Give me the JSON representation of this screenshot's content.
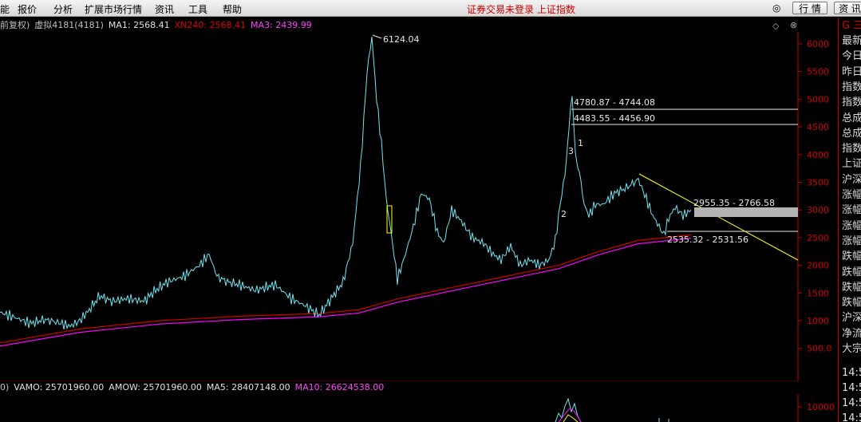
{
  "menu": [
    "能",
    "报价",
    "分析",
    "扩展市场行情",
    "资讯",
    "工具",
    "帮助"
  ],
  "status_title": "证券交易未登录 上证指数",
  "top_buttons": {
    "quotes": "行 情",
    "info": "资 讯"
  },
  "chart_header": {
    "mode": "前复权)",
    "symbol": "虚拟4181(4181)",
    "ma1": "MA1: 2568.41",
    "xn240": "XN240: 2568.41",
    "ma3": "MA3: 2439.99"
  },
  "y_axis": {
    "ticks": [
      "6000",
      "5500",
      "5000",
      "4500",
      "4000",
      "3500",
      "3000",
      "2500",
      "2000",
      "1500",
      "1000",
      "500.0"
    ]
  },
  "annotations": {
    "peak": "6124.04",
    "range1": "4780.87 - 4744.08",
    "range2": "4483.55 - 4456.90",
    "range3": "2955.35 - 2766.58",
    "range4": "2535.32 - 2531.56",
    "wave1": "1",
    "wave2": "2",
    "wave3": "3"
  },
  "sub_header": {
    "prefix": "0)",
    "vamo": "VAMO: 25701960.00",
    "amow": "AMOW: 25701960.00",
    "ma5": "MA5: 28407148.00",
    "ma10": "MA10: 26624538.00"
  },
  "sub_axis": {
    "tick": "10000"
  },
  "right_panel": {
    "header": "G 三",
    "labels": [
      "最新",
      "今日",
      "昨日",
      "指数",
      "指数",
      "总成",
      "总成",
      "指数",
      "上证",
      "沪深",
      "涨幅",
      "涨幅",
      "涨幅",
      "涨幅",
      "跌幅",
      "跌幅",
      "跌幅",
      "跌幅",
      "沪深",
      "净流",
      "大宗"
    ],
    "times": [
      "14:5",
      "14:5",
      "14:5",
      "14:5",
      "14:5"
    ]
  },
  "colors": {
    "price_line": "#6ee6f0",
    "xn240": "#d00000",
    "ma3": "#ff00ff",
    "trendline": "#ffff00",
    "axis": "#c00000"
  }
}
